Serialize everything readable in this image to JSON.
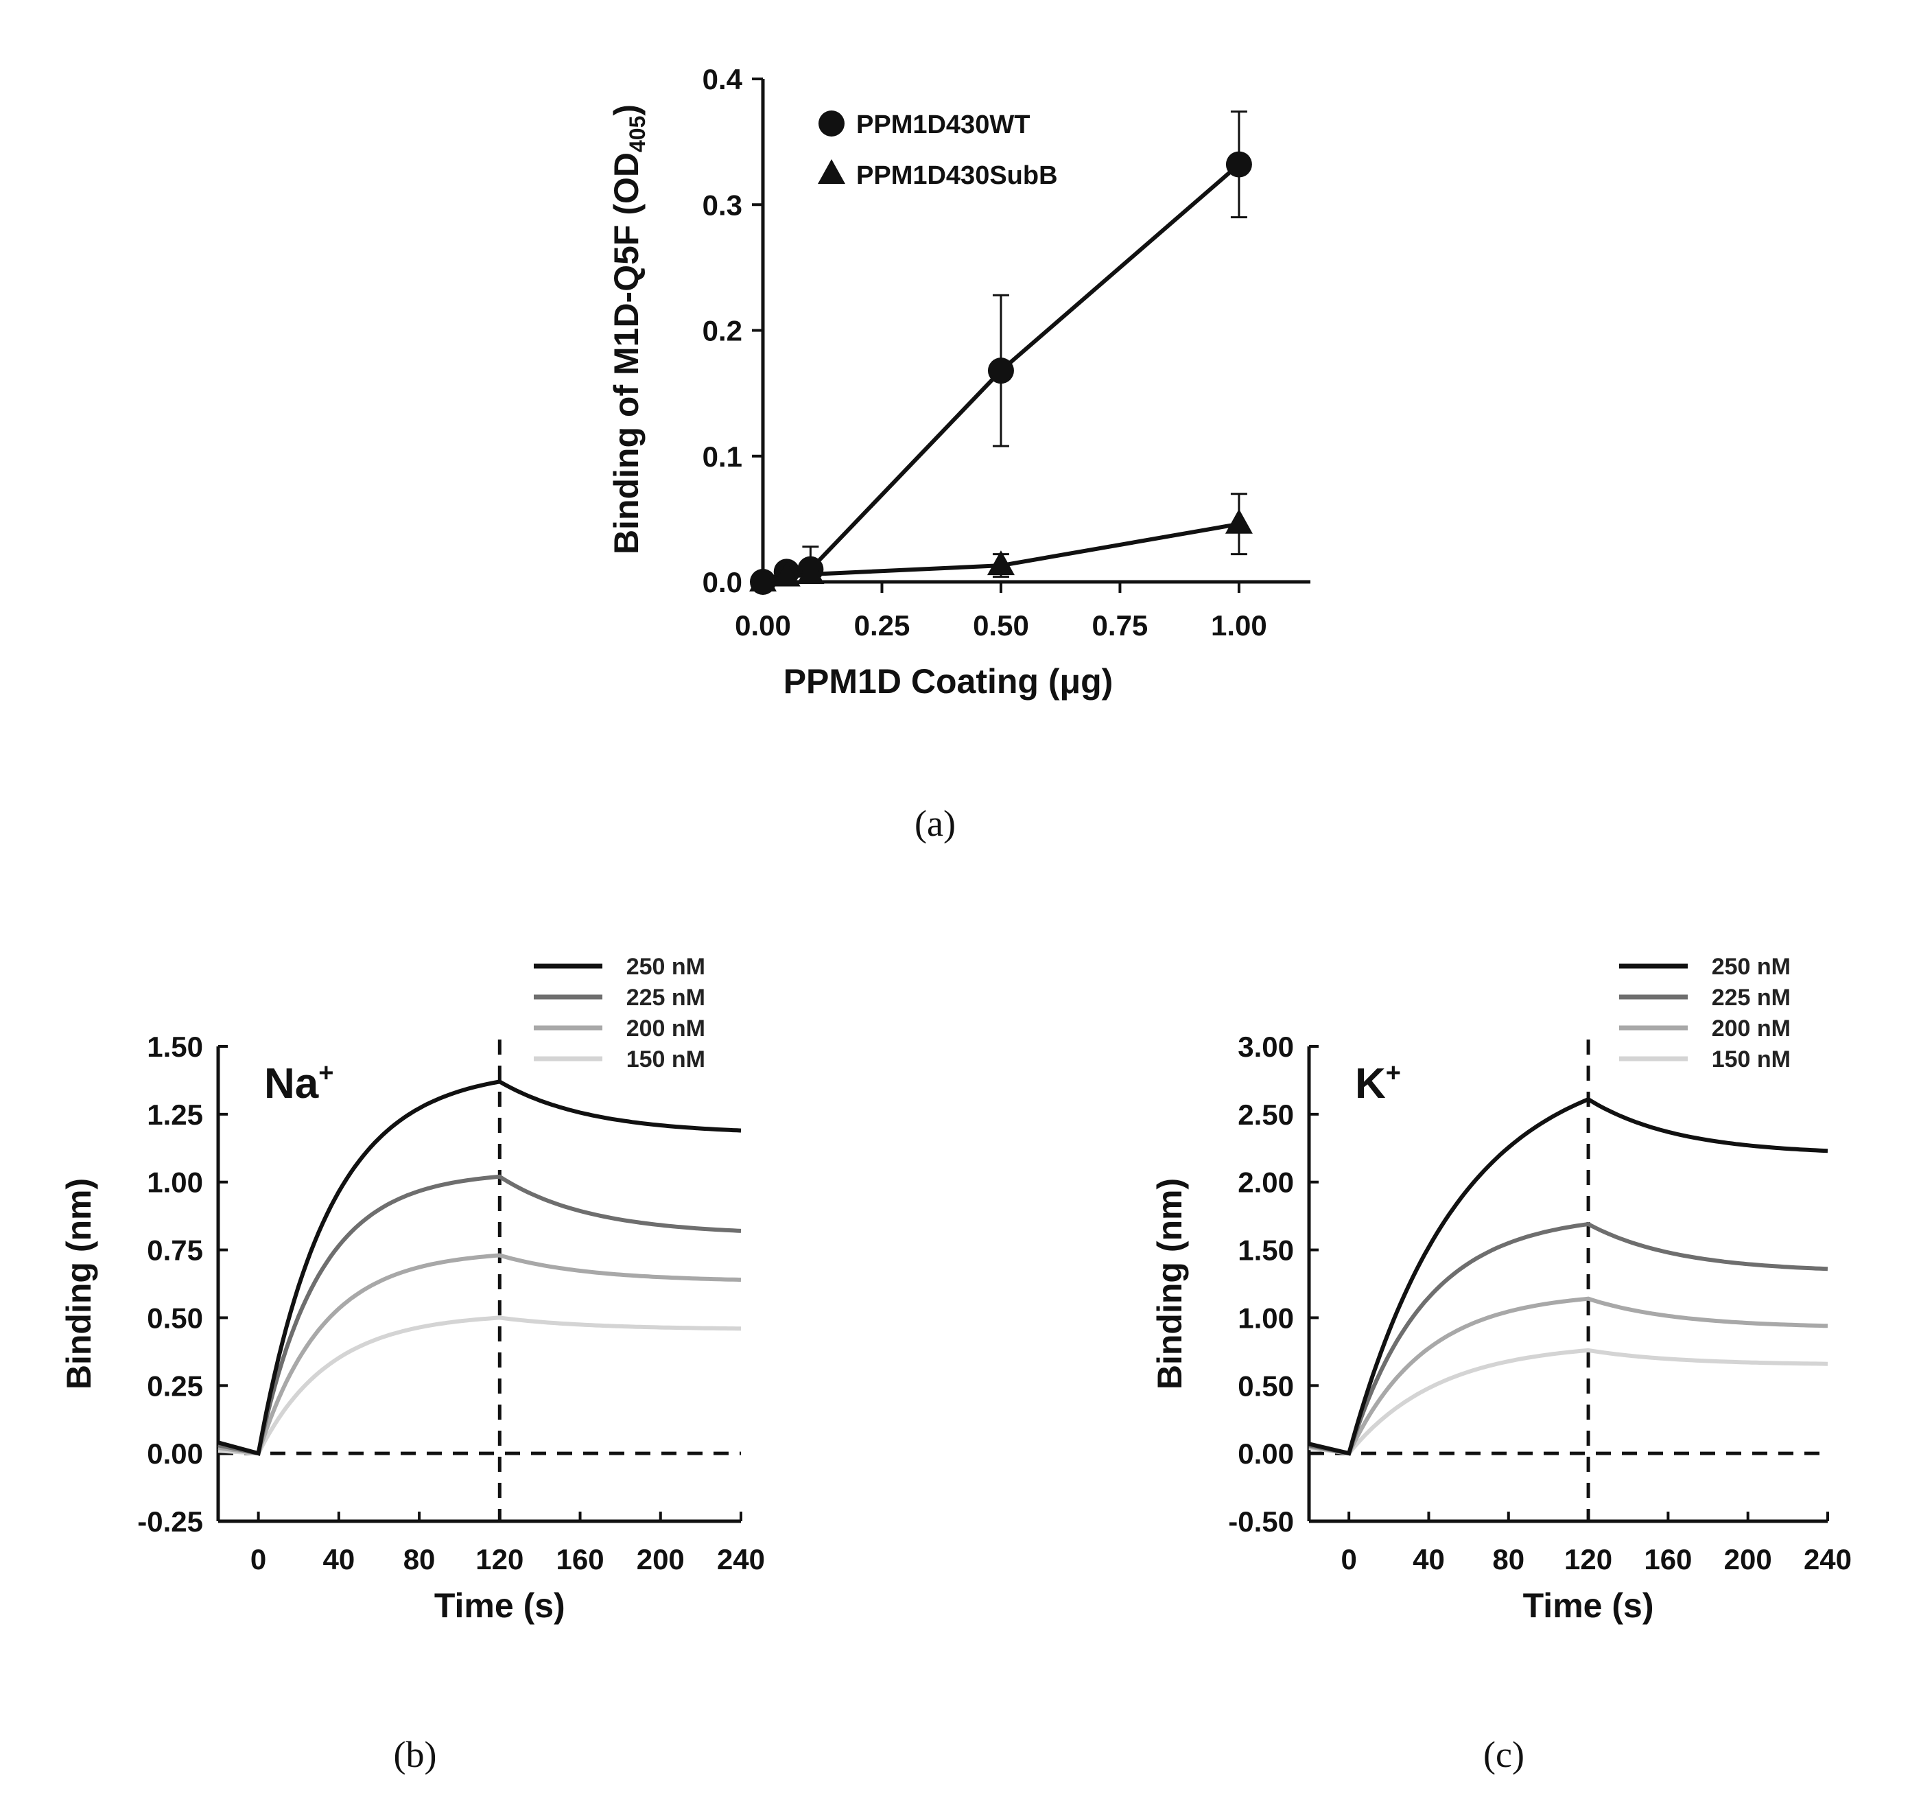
{
  "chart_data": [
    {
      "panel": "(a)",
      "type": "line",
      "xlabel": "PPM1D Coating (μg)",
      "ylabel_main": "Binding of M1D-Q5F (OD",
      "ylabel_sub": "405",
      "ylabel_close": ")",
      "xlim": [
        0,
        1.15
      ],
      "ylim": [
        0,
        0.4
      ],
      "xticks": [
        "0.00",
        "0.25",
        "0.50",
        "0.75",
        "1.00"
      ],
      "yticks": [
        "0.0",
        "0.1",
        "0.2",
        "0.3",
        "0.4"
      ],
      "legend_position": "top-left",
      "series": [
        {
          "name": "PPM1D430WT",
          "marker": "circle",
          "x": [
            0,
            0.05,
            0.1,
            0.5,
            1.0
          ],
          "y": [
            0.0,
            0.008,
            0.01,
            0.168,
            0.332
          ],
          "err": [
            0.002,
            0.005,
            0.018,
            0.06,
            0.042
          ]
        },
        {
          "name": "PPM1D430SubB",
          "marker": "triangle",
          "x": [
            0,
            0.05,
            0.1,
            0.5,
            1.0
          ],
          "y": [
            0.0,
            0.004,
            0.006,
            0.013,
            0.046
          ],
          "err": [
            0.001,
            0.002,
            0.003,
            0.009,
            0.024
          ]
        }
      ]
    },
    {
      "panel": "(b)",
      "type": "line",
      "annotation": "Na",
      "annotation_sup": "+",
      "xlabel": "Time (s)",
      "ylabel": "Binding (nm)",
      "xlim": [
        -20,
        240
      ],
      "ylim": [
        -0.25,
        1.5
      ],
      "xticks": [
        "0",
        "40",
        "80",
        "120",
        "160",
        "200",
        "240"
      ],
      "yticks": [
        "-0.25",
        "0.00",
        "0.25",
        "0.50",
        "0.75",
        "1.00",
        "1.25",
        "1.50"
      ],
      "association_end": 120,
      "legend_position": "top-right",
      "series": [
        {
          "name": "250 nM",
          "color": "#111111",
          "rmax_assoc": 1.37,
          "tau_assoc": 35,
          "end_value": 1.19,
          "pre_value": 0.04
        },
        {
          "name": "225 nM",
          "color": "#6e6e6e",
          "rmax_assoc": 1.02,
          "tau_assoc": 30,
          "end_value": 0.82,
          "pre_value": 0.03
        },
        {
          "name": "200 nM",
          "color": "#a8a8a8",
          "rmax_assoc": 0.73,
          "tau_assoc": 32,
          "end_value": 0.64,
          "pre_value": 0.02
        },
        {
          "name": "150 nM",
          "color": "#d4d4d4",
          "rmax_assoc": 0.5,
          "tau_assoc": 35,
          "end_value": 0.46,
          "pre_value": 0.01
        }
      ]
    },
    {
      "panel": "(c)",
      "type": "line",
      "annotation": "K",
      "annotation_sup": "+",
      "xlabel": "Time (s)",
      "ylabel": "Binding (nm)",
      "xlim": [
        -20,
        240
      ],
      "ylim": [
        -0.5,
        3.0
      ],
      "xticks": [
        "0",
        "40",
        "80",
        "120",
        "160",
        "200",
        "240"
      ],
      "yticks": [
        "-0.50",
        "0.00",
        "0.50",
        "1.00",
        "1.50",
        "2.00",
        "2.50",
        "3.00"
      ],
      "association_end": 120,
      "legend_position": "top-right",
      "series": [
        {
          "name": "250 nM",
          "color": "#111111",
          "rmax_assoc": 2.61,
          "tau_assoc": 55,
          "end_value": 2.23,
          "pre_value": 0.07
        },
        {
          "name": "225 nM",
          "color": "#6e6e6e",
          "rmax_assoc": 1.69,
          "tau_assoc": 38,
          "end_value": 1.36,
          "pre_value": 0.06
        },
        {
          "name": "200 nM",
          "color": "#a8a8a8",
          "rmax_assoc": 1.14,
          "tau_assoc": 38,
          "end_value": 0.94,
          "pre_value": 0.05
        },
        {
          "name": "150 nM",
          "color": "#d4d4d4",
          "rmax_assoc": 0.76,
          "tau_assoc": 45,
          "end_value": 0.66,
          "pre_value": 0.04
        }
      ]
    }
  ]
}
